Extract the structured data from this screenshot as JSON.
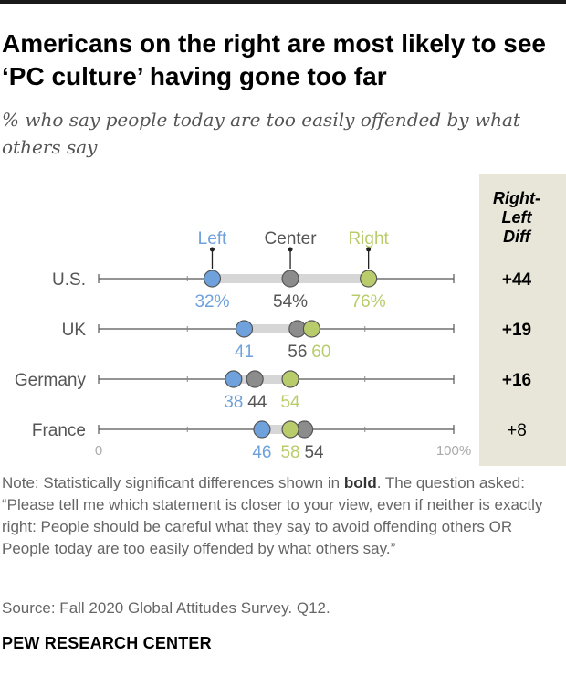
{
  "title": "Americans on the right are most likely to see ‘PC culture’ having gone too far",
  "subtitle": "% who say people today are too easily offended by what others say",
  "note_prefix": "Note: Statistically significant differences shown in ",
  "note_bold": "bold",
  "note_suffix": ". The question asked: “Please tell me which statement is closer to your view, even if neither is exactly right: People should be careful what they say to avoid offending others OR People today are too easily offended by what others say.”",
  "source": "Source: Fall 2020 Global Attitudes Survey. Q12.",
  "brand": "PEW RESEARCH CENTER",
  "colors": {
    "left": "#6fa1dc",
    "center": "#8c8c8c",
    "right": "#b8cc6c",
    "diff_panel": "#e8e6d8"
  },
  "chart_data": {
    "type": "scatter",
    "subtype": "dot-plot",
    "xlim": [
      0,
      100
    ],
    "x_tick_labels": [
      "0",
      "100%"
    ],
    "diff_header": "Right-Left Diff",
    "series": [
      {
        "name": "Left",
        "color": "#6fa1dc"
      },
      {
        "name": "Center",
        "color": "#8c8c8c"
      },
      {
        "name": "Right",
        "color": "#b8cc6c"
      }
    ],
    "rows": [
      {
        "country": "U.S.",
        "Left": 32,
        "Center": 54,
        "Right": 76,
        "labels": [
          "32%",
          "54%",
          "76%"
        ],
        "diff": "+44",
        "significant": true
      },
      {
        "country": "UK",
        "Left": 41,
        "Center": 56,
        "Right": 60,
        "labels": [
          "41",
          "56",
          "60"
        ],
        "diff": "+19",
        "significant": true
      },
      {
        "country": "Germany",
        "Left": 38,
        "Center": 44,
        "Right": 54,
        "labels": [
          "38",
          "44",
          "54"
        ],
        "diff": "+16",
        "significant": true
      },
      {
        "country": "France",
        "Left": 46,
        "Center": 58,
        "Right": 54,
        "labels": [
          "46",
          "54",
          "58"
        ],
        "diff": "+8",
        "significant": false
      }
    ]
  }
}
